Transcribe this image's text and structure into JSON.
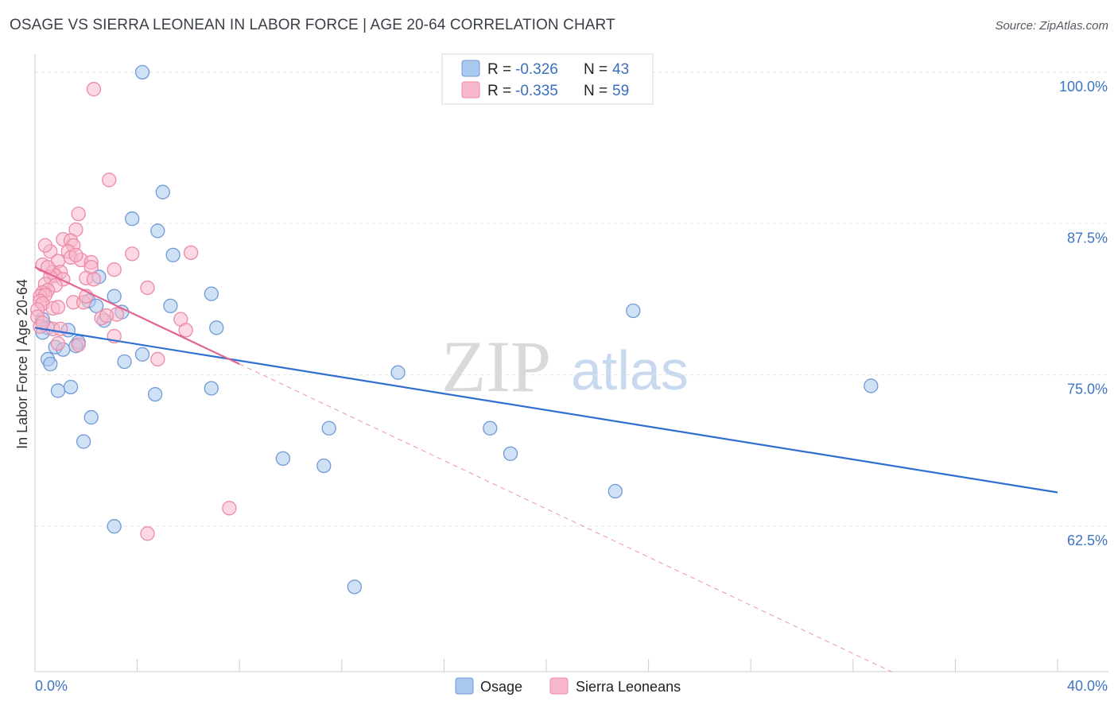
{
  "header": {
    "title": "OSAGE VS SIERRA LEONEAN IN LABOR FORCE | AGE 20-64 CORRELATION CHART",
    "source": "Source: ZipAtlas.com"
  },
  "watermark": {
    "zip": "ZIP",
    "atlas": "atlas"
  },
  "legend": {
    "r_label": "R =",
    "n_label": "N =",
    "series": [
      {
        "name": "Osage",
        "r": "-0.326",
        "n": "43"
      },
      {
        "name": "Sierra Leoneans",
        "r": "-0.335",
        "n": "59"
      }
    ]
  },
  "chart_data": {
    "type": "scatter",
    "title": "OSAGE VS SIERRA LEONEAN IN LABOR FORCE | AGE 20-64 CORRELATION CHART",
    "xlabel": "",
    "ylabel": "In Labor Force | Age 20-64",
    "xlim": [
      0,
      40
    ],
    "ylim": [
      50.5,
      101.5
    ],
    "x_tick_labels": [
      "0.0%",
      "40.0%"
    ],
    "y_ticks": [
      62.5,
      75.0,
      87.5,
      100.0
    ],
    "y_tick_labels": [
      "62.5%",
      "75.0%",
      "87.5%",
      "100.0%"
    ],
    "colors": {
      "osage_fill": "#a9c8ee",
      "osage_stroke": "#6f9ad6",
      "osage_line": "#2f6fd0",
      "sierra_fill": "#f7b8cb",
      "sierra_stroke": "#ec8aa8",
      "sierra_line": "#e36590"
    },
    "series": [
      {
        "name": "Osage",
        "trend": {
          "x": [
            0,
            40
          ],
          "y": [
            78.9,
            65.3
          ]
        },
        "points": [
          [
            4.2,
            100.0
          ],
          [
            3.8,
            87.9
          ],
          [
            5.0,
            90.1
          ],
          [
            4.8,
            86.9
          ],
          [
            5.4,
            84.9
          ],
          [
            6.9,
            81.7
          ],
          [
            2.5,
            83.1
          ],
          [
            2.1,
            81.1
          ],
          [
            3.1,
            81.5
          ],
          [
            2.4,
            80.7
          ],
          [
            5.3,
            80.7
          ],
          [
            3.4,
            80.2
          ],
          [
            2.7,
            79.5
          ],
          [
            0.3,
            79.6
          ],
          [
            0.5,
            78.9
          ],
          [
            0.3,
            78.5
          ],
          [
            1.3,
            78.7
          ],
          [
            7.1,
            78.9
          ],
          [
            23.4,
            80.3
          ],
          [
            1.7,
            77.7
          ],
          [
            0.8,
            77.3
          ],
          [
            1.1,
            77.1
          ],
          [
            1.6,
            77.4
          ],
          [
            4.2,
            76.7
          ],
          [
            3.5,
            76.1
          ],
          [
            0.5,
            76.3
          ],
          [
            0.6,
            75.9
          ],
          [
            14.2,
            75.2
          ],
          [
            1.4,
            74.0
          ],
          [
            0.9,
            73.7
          ],
          [
            4.7,
            73.4
          ],
          [
            6.9,
            73.9
          ],
          [
            32.7,
            74.1
          ],
          [
            2.2,
            71.5
          ],
          [
            11.5,
            70.6
          ],
          [
            17.8,
            70.6
          ],
          [
            1.9,
            69.5
          ],
          [
            9.7,
            68.1
          ],
          [
            18.6,
            68.5
          ],
          [
            11.3,
            67.5
          ],
          [
            22.7,
            65.4
          ],
          [
            3.1,
            62.5
          ],
          [
            12.5,
            57.5
          ]
        ]
      },
      {
        "name": "Sierra Leoneans",
        "trend": {
          "x": [
            0,
            8.0
          ],
          "y": [
            83.9,
            75.9
          ]
        },
        "trend_ext": {
          "x": [
            8.0,
            33.5
          ],
          "y": [
            75.9,
            50.5
          ]
        },
        "points": [
          [
            2.3,
            98.6
          ],
          [
            2.9,
            91.1
          ],
          [
            1.7,
            88.3
          ],
          [
            1.6,
            87.0
          ],
          [
            1.1,
            86.2
          ],
          [
            1.4,
            86.1
          ],
          [
            1.5,
            85.7
          ],
          [
            0.6,
            85.2
          ],
          [
            1.3,
            85.2
          ],
          [
            6.1,
            85.1
          ],
          [
            3.8,
            85.0
          ],
          [
            1.4,
            84.7
          ],
          [
            1.8,
            84.5
          ],
          [
            0.9,
            84.4
          ],
          [
            0.3,
            84.1
          ],
          [
            2.2,
            84.3
          ],
          [
            2.2,
            83.9
          ],
          [
            3.1,
            83.7
          ],
          [
            0.7,
            83.5
          ],
          [
            1.0,
            83.5
          ],
          [
            0.8,
            83.2
          ],
          [
            0.6,
            83.1
          ],
          [
            2.0,
            83.0
          ],
          [
            2.3,
            82.9
          ],
          [
            1.1,
            82.9
          ],
          [
            0.4,
            82.5
          ],
          [
            0.8,
            82.4
          ],
          [
            0.5,
            82.0
          ],
          [
            4.4,
            82.2
          ],
          [
            0.3,
            81.8
          ],
          [
            0.2,
            81.5
          ],
          [
            0.4,
            81.6
          ],
          [
            0.2,
            81.1
          ],
          [
            0.3,
            80.9
          ],
          [
            1.5,
            81.0
          ],
          [
            1.9,
            81.0
          ],
          [
            0.7,
            80.5
          ],
          [
            0.1,
            80.4
          ],
          [
            0.1,
            79.8
          ],
          [
            3.2,
            80.0
          ],
          [
            5.7,
            79.6
          ],
          [
            2.6,
            79.7
          ],
          [
            0.2,
            79.0
          ],
          [
            0.7,
            78.8
          ],
          [
            1.0,
            78.8
          ],
          [
            5.9,
            78.7
          ],
          [
            3.1,
            78.2
          ],
          [
            0.9,
            77.6
          ],
          [
            1.7,
            77.5
          ],
          [
            4.8,
            76.3
          ],
          [
            7.6,
            64.0
          ],
          [
            4.4,
            61.9
          ],
          [
            0.4,
            85.7
          ],
          [
            1.6,
            84.9
          ],
          [
            2.0,
            81.5
          ],
          [
            0.9,
            80.6
          ],
          [
            0.3,
            79.3
          ],
          [
            2.8,
            79.9
          ],
          [
            0.5,
            83.9
          ]
        ]
      }
    ]
  }
}
